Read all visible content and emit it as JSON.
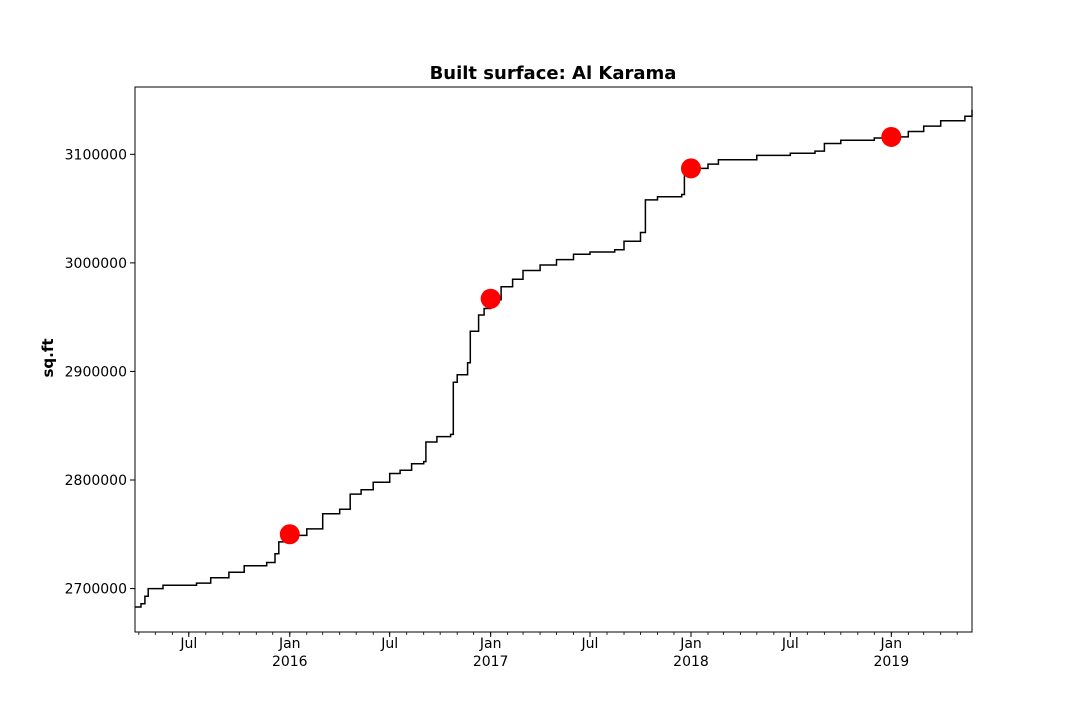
{
  "chart_data": {
    "type": "line",
    "title": "Built surface: Al Karama",
    "xlabel": "",
    "ylabel": "sq.ft",
    "xlim": [
      "2015-03-25",
      "2019-05-28"
    ],
    "ylim": [
      2660000,
      3162000
    ],
    "yticks": [
      2700000,
      2800000,
      2900000,
      3000000,
      3100000
    ],
    "xticks": [
      {
        "date": "2015-07-01",
        "label": "Jul",
        "year": ""
      },
      {
        "date": "2016-01-01",
        "label": "Jan",
        "year": "2016"
      },
      {
        "date": "2016-07-01",
        "label": "Jul",
        "year": ""
      },
      {
        "date": "2017-01-01",
        "label": "Jan",
        "year": "2017"
      },
      {
        "date": "2017-07-01",
        "label": "Jul",
        "year": ""
      },
      {
        "date": "2018-01-01",
        "label": "Jan",
        "year": "2018"
      },
      {
        "date": "2018-07-01",
        "label": "Jul",
        "year": ""
      },
      {
        "date": "2019-01-01",
        "label": "Jan",
        "year": "2019"
      }
    ],
    "grid": false,
    "line_color": "#000000",
    "marker_color": "#ff0000",
    "series": [
      {
        "points": [
          [
            "2015-03-25",
            2683000
          ],
          [
            "2015-04-05",
            2686000
          ],
          [
            "2015-04-12",
            2693000
          ],
          [
            "2015-04-18",
            2700000
          ],
          [
            "2015-05-15",
            2703000
          ],
          [
            "2015-07-15",
            2705000
          ],
          [
            "2015-08-10",
            2710000
          ],
          [
            "2015-09-12",
            2715000
          ],
          [
            "2015-10-10",
            2721000
          ],
          [
            "2015-11-20",
            2724000
          ],
          [
            "2015-12-05",
            2732000
          ],
          [
            "2015-12-12",
            2743000
          ],
          [
            "2016-01-05",
            2749000
          ],
          [
            "2016-02-01",
            2755000
          ],
          [
            "2016-03-01",
            2769000
          ],
          [
            "2016-04-01",
            2773000
          ],
          [
            "2016-04-20",
            2787000
          ],
          [
            "2016-05-10",
            2791000
          ],
          [
            "2016-06-01",
            2798000
          ],
          [
            "2016-07-01",
            2806000
          ],
          [
            "2016-07-20",
            2809000
          ],
          [
            "2016-08-10",
            2815000
          ],
          [
            "2016-09-01",
            2817000
          ],
          [
            "2016-09-05",
            2835000
          ],
          [
            "2016-09-25",
            2840000
          ],
          [
            "2016-10-20",
            2842000
          ],
          [
            "2016-10-25",
            2890000
          ],
          [
            "2016-11-01",
            2897000
          ],
          [
            "2016-11-20",
            2908000
          ],
          [
            "2016-11-25",
            2937000
          ],
          [
            "2016-12-10",
            2952000
          ],
          [
            "2016-12-20",
            2958000
          ],
          [
            "2017-01-01",
            2966000
          ],
          [
            "2017-01-20",
            2978000
          ],
          [
            "2017-02-10",
            2985000
          ],
          [
            "2017-03-01",
            2993000
          ],
          [
            "2017-04-01",
            2998000
          ],
          [
            "2017-05-01",
            3003000
          ],
          [
            "2017-06-01",
            3008000
          ],
          [
            "2017-07-01",
            3010000
          ],
          [
            "2017-08-15",
            3012000
          ],
          [
            "2017-09-01",
            3020000
          ],
          [
            "2017-10-01",
            3028000
          ],
          [
            "2017-10-10",
            3058000
          ],
          [
            "2017-11-01",
            3061000
          ],
          [
            "2017-12-15",
            3063000
          ],
          [
            "2017-12-20",
            3085000
          ],
          [
            "2018-01-01",
            3087000
          ],
          [
            "2018-02-01",
            3091000
          ],
          [
            "2018-02-20",
            3095000
          ],
          [
            "2018-05-01",
            3099000
          ],
          [
            "2018-07-01",
            3101000
          ],
          [
            "2018-08-15",
            3103000
          ],
          [
            "2018-09-01",
            3110000
          ],
          [
            "2018-10-01",
            3113000
          ],
          [
            "2018-12-01",
            3115000
          ],
          [
            "2019-01-01",
            3116000
          ],
          [
            "2019-02-01",
            3121000
          ],
          [
            "2019-03-01",
            3126000
          ],
          [
            "2019-04-01",
            3131000
          ],
          [
            "2019-05-15",
            3135000
          ],
          [
            "2019-05-28",
            3141000
          ]
        ]
      }
    ],
    "highlights": [
      [
        "2016-01-01",
        2750000
      ],
      [
        "2017-01-01",
        2967000
      ],
      [
        "2018-01-01",
        3087000
      ],
      [
        "2019-01-01",
        3116000
      ]
    ]
  }
}
